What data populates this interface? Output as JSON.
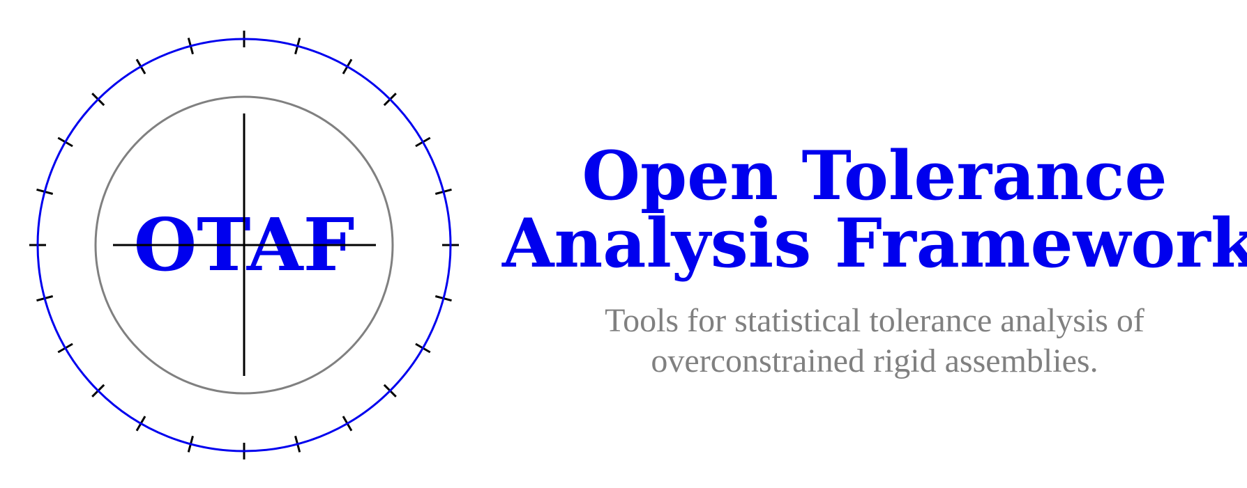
{
  "logo": {
    "text": "OTAF"
  },
  "heading": {
    "line1": "Open Tolerance",
    "line2": "Analysis Framework"
  },
  "tagline": {
    "line1": "Tools for statistical tolerance analysis of",
    "line2": "overconstrained rigid assemblies."
  },
  "colors": {
    "accent": "#0000ee",
    "muted": "#808080",
    "ink": "#000000"
  }
}
